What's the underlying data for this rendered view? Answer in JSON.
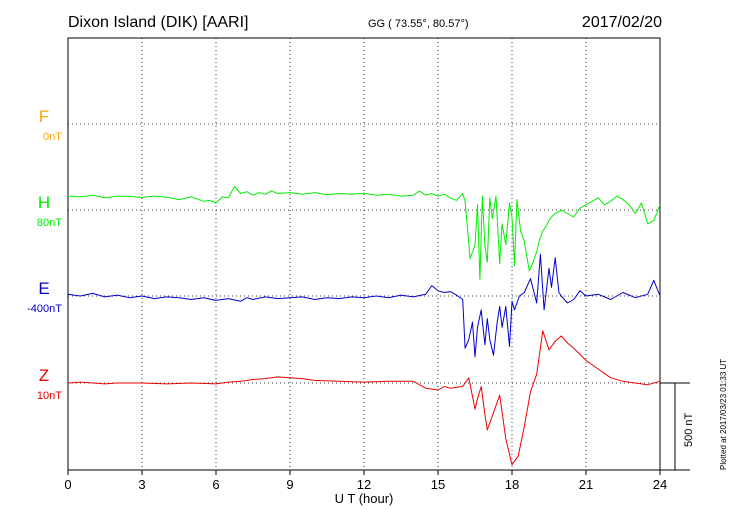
{
  "chart_data": {
    "type": "line",
    "title": "Dixon Island (DIK)  [AARI]",
    "coords": "GG ( 73.55°,  80.57°)",
    "date": "2017/02/20",
    "xlabel": "U T (hour)",
    "xlim": [
      0,
      24
    ],
    "xticks": [
      0,
      3,
      6,
      9,
      12,
      15,
      18,
      21,
      24
    ],
    "grid": true,
    "scale_bar": "500 nT",
    "plotted_note": "Plotted at 2017/03/23 01:33 UT",
    "series": [
      {
        "name": "F",
        "baseline": "0nT",
        "color": "#FFA500",
        "offset_nT": 0,
        "x": [],
        "y": []
      },
      {
        "name": "H",
        "baseline": "80nT",
        "color": "#00EE00",
        "offset_nT": 0,
        "x": [
          0,
          0.5,
          1,
          1.5,
          2,
          2.5,
          3,
          3.5,
          4,
          4.5,
          5,
          5.5,
          5.75,
          6,
          6.25,
          6.5,
          6.75,
          7,
          7.25,
          7.5,
          7.75,
          8,
          8.25,
          8.5,
          9,
          9.5,
          10,
          10.5,
          11,
          11.5,
          12,
          12.5,
          13,
          13.5,
          14,
          14.25,
          14.5,
          14.75,
          15,
          15.25,
          15.5,
          15.75,
          16,
          16.1,
          16.3,
          16.5,
          16.6,
          16.7,
          16.8,
          16.9,
          17.0,
          17.1,
          17.2,
          17.35,
          17.5,
          17.6,
          17.75,
          17.9,
          18.0,
          18.1,
          18.2,
          18.35,
          18.5,
          18.7,
          18.85,
          19.0,
          19.1,
          19.25,
          19.4,
          19.5,
          19.6,
          19.75,
          19.9,
          20.0,
          20.25,
          20.5,
          20.75,
          21,
          21.25,
          21.5,
          21.75,
          22,
          22.25,
          22.5,
          22.75,
          23,
          23.25,
          23.5,
          23.75,
          24
        ],
        "y": [
          80,
          75,
          85,
          70,
          80,
          78,
          72,
          80,
          74,
          60,
          75,
          50,
          55,
          40,
          75,
          70,
          135,
          95,
          105,
          85,
          100,
          90,
          110,
          95,
          100,
          90,
          100,
          88,
          95,
          90,
          96,
          85,
          90,
          80,
          85,
          110,
          85,
          95,
          80,
          90,
          70,
          55,
          95,
          50,
          -280,
          -200,
          30,
          -400,
          80,
          -210,
          -300,
          70,
          -50,
          80,
          -310,
          -80,
          -200,
          40,
          -40,
          -320,
          60,
          -120,
          -180,
          -350,
          -300,
          -240,
          -180,
          -120,
          -90,
          -60,
          -40,
          -20,
          -10,
          0,
          -20,
          -40,
          10,
          30,
          50,
          70,
          30,
          50,
          80,
          60,
          30,
          -20,
          40,
          -80,
          -60,
          30
        ]
      },
      {
        "name": "E",
        "baseline": "-400nT",
        "color": "#0000CC",
        "offset_nT": 0,
        "x": [
          0,
          0.5,
          1,
          1.5,
          2,
          2.5,
          3,
          3.5,
          4,
          4.5,
          5,
          5.5,
          6,
          6.5,
          7,
          7.25,
          7.5,
          8,
          8.5,
          9,
          9.5,
          10,
          10.5,
          11,
          11.5,
          12,
          12.5,
          13,
          13.5,
          14,
          14.5,
          14.75,
          15,
          15.25,
          15.5,
          15.75,
          16,
          16.1,
          16.25,
          16.4,
          16.5,
          16.6,
          16.75,
          16.9,
          17.0,
          17.1,
          17.25,
          17.4,
          17.5,
          17.6,
          17.75,
          17.9,
          18.0,
          18.1,
          18.3,
          18.5,
          18.75,
          19.0,
          19.15,
          19.3,
          19.5,
          19.6,
          19.75,
          19.9,
          20.0,
          20.25,
          20.5,
          20.75,
          21,
          21.5,
          22,
          22.5,
          23,
          23.5,
          23.75,
          24
        ],
        "y": [
          10,
          0,
          15,
          -5,
          5,
          -10,
          0,
          -15,
          -5,
          -10,
          -20,
          -10,
          -25,
          -15,
          -30,
          -10,
          -20,
          -5,
          -15,
          -10,
          -5,
          -20,
          -10,
          -15,
          -5,
          -10,
          0,
          -10,
          5,
          -5,
          10,
          60,
          30,
          20,
          25,
          5,
          -20,
          -300,
          -250,
          -150,
          -350,
          -180,
          -80,
          -280,
          -130,
          -250,
          -340,
          -150,
          -60,
          -180,
          -60,
          -290,
          -30,
          -80,
          0,
          20,
          100,
          -40,
          240,
          -80,
          160,
          50,
          220,
          20,
          0,
          -40,
          -20,
          30,
          0,
          10,
          -20,
          20,
          -10,
          10,
          90,
          0
        ]
      },
      {
        "name": "Z",
        "baseline": "10nT",
        "color": "#EE0000",
        "offset_nT": 0,
        "x": [
          0,
          0.5,
          1,
          1.5,
          2,
          3,
          4,
          5,
          6,
          6.5,
          7,
          7.5,
          8,
          8.5,
          9,
          9.5,
          10,
          11,
          12,
          13,
          14,
          14.5,
          15,
          15.25,
          15.5,
          16,
          16.25,
          16.5,
          16.6,
          16.75,
          16.9,
          17.0,
          17.25,
          17.5,
          17.75,
          18.0,
          18.25,
          18.5,
          18.75,
          19.0,
          19.25,
          19.5,
          19.75,
          20.0,
          20.25,
          20.5,
          21,
          21.5,
          22,
          22.5,
          23,
          23.5,
          24
        ],
        "y": [
          0,
          5,
          0,
          -5,
          0,
          0,
          -5,
          0,
          -5,
          5,
          10,
          20,
          25,
          35,
          30,
          25,
          15,
          10,
          5,
          10,
          10,
          -30,
          -40,
          -20,
          -30,
          -20,
          30,
          -150,
          -90,
          -20,
          -180,
          -270,
          -170,
          -70,
          -320,
          -470,
          -420,
          -250,
          -50,
          50,
          300,
          190,
          240,
          270,
          230,
          200,
          130,
          80,
          30,
          10,
          0,
          -10,
          10
        ]
      }
    ]
  },
  "labels": {
    "scale_note": "500 nT"
  }
}
